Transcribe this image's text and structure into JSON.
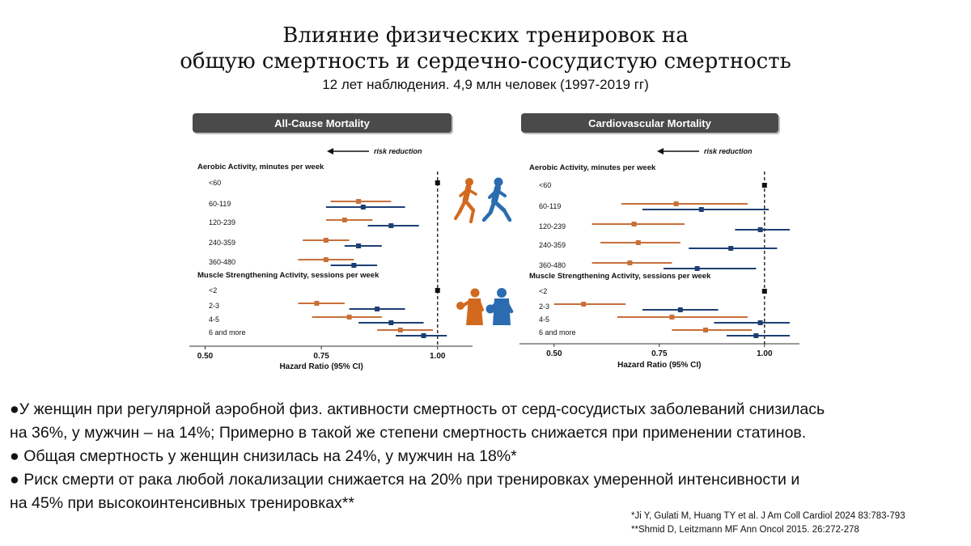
{
  "title": {
    "line1": "Влияние физических тренировок на",
    "line2": "общую смертность и сердечно-сосудистую смертность",
    "subtitle": "12 лет наблюдения. 4,9 млн человек (1997-2019 гг)"
  },
  "colors": {
    "female": "#c8703a",
    "male": "#1d3f73",
    "panel_header": "#4a4a4a",
    "icon_female": "#d2691e",
    "icon_male": "#2b6cb0"
  },
  "icons": {
    "aerobic": "running-figures-icon",
    "strength": "boxing-figures-icon"
  },
  "chart_data": [
    {
      "type": "forest",
      "title": "All-Cause Mortality",
      "arrow_label": "risk reduction",
      "xlabel": "Hazard Ratio (95% CI)",
      "xlim": [
        0.48,
        1.03
      ],
      "xticks": [
        "0.50",
        "0.75",
        "1.00"
      ],
      "reference": 1.0,
      "sections": [
        {
          "heading": "Aerobic Activity, minutes per week",
          "rows": [
            {
              "label": "<60",
              "reference": 1.0
            },
            {
              "label": "60-119",
              "female": [
                0.83,
                0.77,
                0.9
              ],
              "male": [
                0.84,
                0.76,
                0.93
              ]
            },
            {
              "label": "120-239",
              "female": [
                0.8,
                0.76,
                0.86
              ],
              "male": [
                0.9,
                0.85,
                0.96
              ]
            },
            {
              "label": "240-359",
              "female": [
                0.76,
                0.71,
                0.81
              ],
              "male": [
                0.83,
                0.8,
                0.88
              ]
            },
            {
              "label": "360-480",
              "female": [
                0.76,
                0.7,
                0.82
              ],
              "male": [
                0.82,
                0.77,
                0.87
              ]
            }
          ]
        },
        {
          "heading": "Muscle Strengthening Activity, sessions per week",
          "rows": [
            {
              "label": "<2",
              "reference": 1.0
            },
            {
              "label": "2-3",
              "female": [
                0.74,
                0.7,
                0.8
              ],
              "male": [
                0.87,
                0.81,
                0.93
              ]
            },
            {
              "label": "4-5",
              "female": [
                0.81,
                0.73,
                0.88
              ],
              "male": [
                0.9,
                0.83,
                0.97
              ]
            },
            {
              "label": "6 and more",
              "female": [
                0.92,
                0.87,
                0.99
              ],
              "male": [
                0.97,
                0.91,
                1.02
              ]
            }
          ]
        }
      ]
    },
    {
      "type": "forest",
      "title": "Cardiovascular Mortality",
      "arrow_label": "risk reduction",
      "xlabel": "Hazard Ratio (95% CI)",
      "xlim": [
        0.46,
        1.06
      ],
      "xticks": [
        "0.50",
        "0.75",
        "1.00"
      ],
      "reference": 1.0,
      "sections": [
        {
          "heading": "Aerobic Activity, minutes per week",
          "rows": [
            {
              "label": "<60",
              "reference": 1.0
            },
            {
              "label": "60-119",
              "female": [
                0.79,
                0.66,
                0.96
              ],
              "male": [
                0.85,
                0.71,
                1.01
              ]
            },
            {
              "label": "120-239",
              "female": [
                0.69,
                0.59,
                0.81
              ],
              "male": [
                0.99,
                0.93,
                1.06
              ]
            },
            {
              "label": "240-359",
              "female": [
                0.7,
                0.61,
                0.8
              ],
              "male": [
                0.92,
                0.82,
                1.03
              ]
            },
            {
              "label": "360-480",
              "female": [
                0.68,
                0.59,
                0.78
              ],
              "male": [
                0.84,
                0.76,
                0.98
              ]
            }
          ]
        },
        {
          "heading": "Muscle Strengthening Activity, sessions per week",
          "rows": [
            {
              "label": "<2",
              "reference": 1.0
            },
            {
              "label": "2-3",
              "female": [
                0.57,
                0.5,
                0.67
              ],
              "male": [
                0.8,
                0.71,
                0.89
              ]
            },
            {
              "label": "4-5",
              "female": [
                0.78,
                0.65,
                0.96
              ],
              "male": [
                0.99,
                0.88,
                1.06
              ]
            },
            {
              "label": "6 and more",
              "female": [
                0.86,
                0.78,
                0.97
              ],
              "male": [
                0.98,
                0.91,
                1.06
              ]
            }
          ]
        }
      ]
    }
  ],
  "bullets": [
    {
      "line1": "●У женщин при регулярной аэробной физ. активности смертность от серд-сосудистых заболеваний снизилась",
      "line2": "на 36%, у мужчин – на 14%; Примерно в такой же степени смертность снижается при применении статинов."
    },
    {
      "line1": "● Общая смертность у женщин снизилась на 24%, у мужчин на 18%*"
    },
    {
      "line1": "● Риск смерти от рака любой локализации снижается на 20% при тренировках умеренной интенсивности и",
      "line2": "на 45% при высокоинтенсивных тренировках**"
    }
  ],
  "references": [
    "*Ji Y, Gulati M, Huang TY et al. J Am Coll Cardiol 2024 83:783-793",
    "**Shmid D, Leitzmann MF Ann Oncol 2015. 26:272-278"
  ]
}
